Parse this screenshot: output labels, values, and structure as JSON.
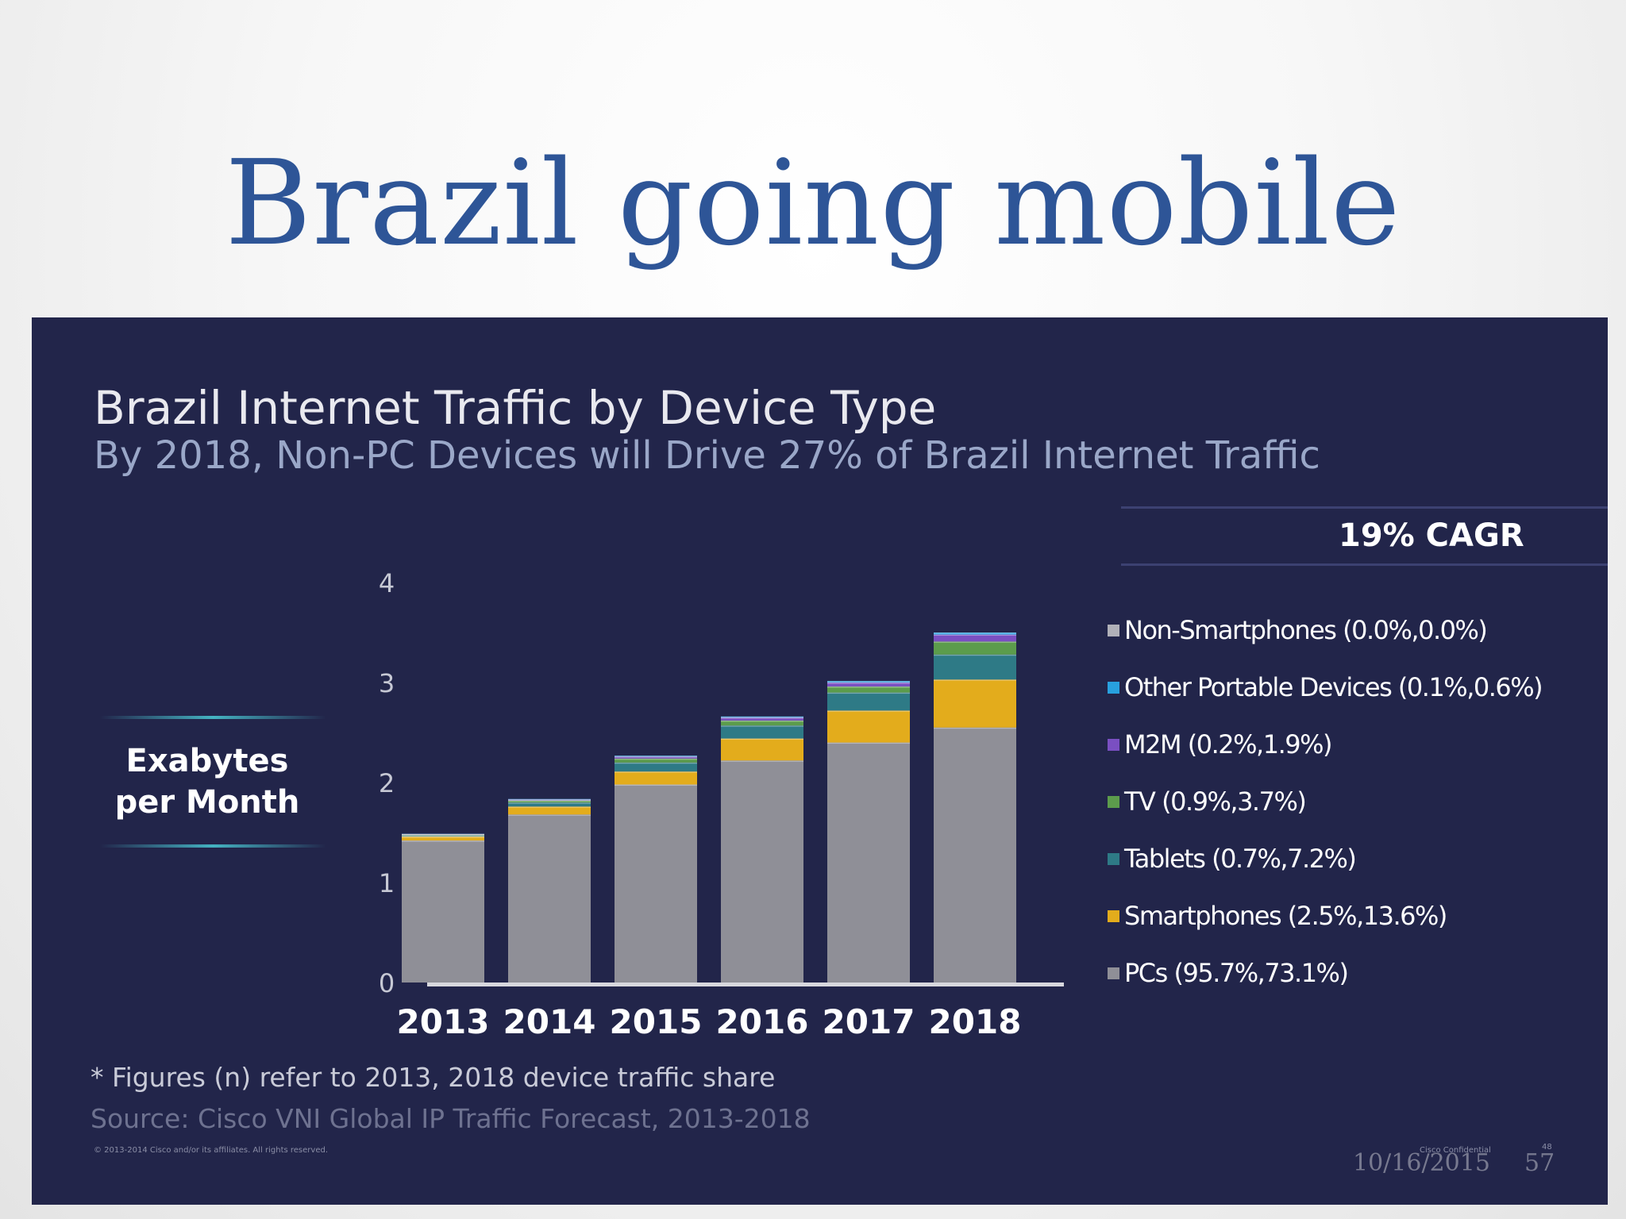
{
  "slide": {
    "title": "Brazil going mobile",
    "date": "10/16/2015",
    "page_number": "57"
  },
  "panel": {
    "cagr": "19% CAGR",
    "ylabel_line1": "Exabytes",
    "ylabel_line2": "per Month",
    "footnote": "* Figures (n) refer to 2013, 2018 device traffic share",
    "source": "Source: Cisco VNI Global IP Traffic Forecast, 2013-2018",
    "copyright": "© 2013-2014 Cisco and/or its affiliates. All rights reserved.",
    "confidential": "Cisco Confidential",
    "page_small": "48"
  },
  "chart_data": {
    "type": "bar",
    "stacked": true,
    "title": "Brazil Internet Traffic by Device Type",
    "subtitle": "By 2018, Non-PC Devices will Drive 27% of Brazil Internet Traffic",
    "ylabel": "Exabytes per Month",
    "ylim": [
      0,
      4
    ],
    "yticks": [
      "0",
      "1",
      "2",
      "3",
      "4"
    ],
    "categories": [
      "2013",
      "2014",
      "2015",
      "2016",
      "2017",
      "2018"
    ],
    "series": [
      {
        "name": "PCs (95.7%,73.1%)",
        "color": "#8f8f97",
        "values": [
          1.42,
          1.68,
          1.98,
          2.22,
          2.4,
          2.55
        ]
      },
      {
        "name": "Smartphones (2.5%,13.6%)",
        "color": "#e3ac1c",
        "values": [
          0.04,
          0.08,
          0.13,
          0.22,
          0.32,
          0.48
        ]
      },
      {
        "name": "Tablets (0.7%,7.2%)",
        "color": "#2e7a86",
        "values": [
          0.01,
          0.04,
          0.09,
          0.13,
          0.18,
          0.25
        ]
      },
      {
        "name": "TV (0.9%,3.7%)",
        "color": "#5c9c4c",
        "values": [
          0.01,
          0.02,
          0.04,
          0.05,
          0.06,
          0.13
        ]
      },
      {
        "name": "M2M (0.2%,1.9%)",
        "color": "#7a4fc2",
        "values": [
          0.005,
          0.01,
          0.02,
          0.03,
          0.04,
          0.07
        ]
      },
      {
        "name": "Other Portable Devices (0.1%,0.6%)",
        "color": "#28a0de",
        "values": [
          0.002,
          0.005,
          0.008,
          0.01,
          0.015,
          0.02
        ]
      },
      {
        "name": "Non-Smartphones (0.0%,0.0%)",
        "color": "#b0b0b8",
        "values": [
          0,
          0,
          0,
          0,
          0,
          0
        ]
      }
    ],
    "legend_order": [
      6,
      5,
      4,
      3,
      2,
      1,
      0
    ],
    "legend_position": "right",
    "grid": false
  }
}
